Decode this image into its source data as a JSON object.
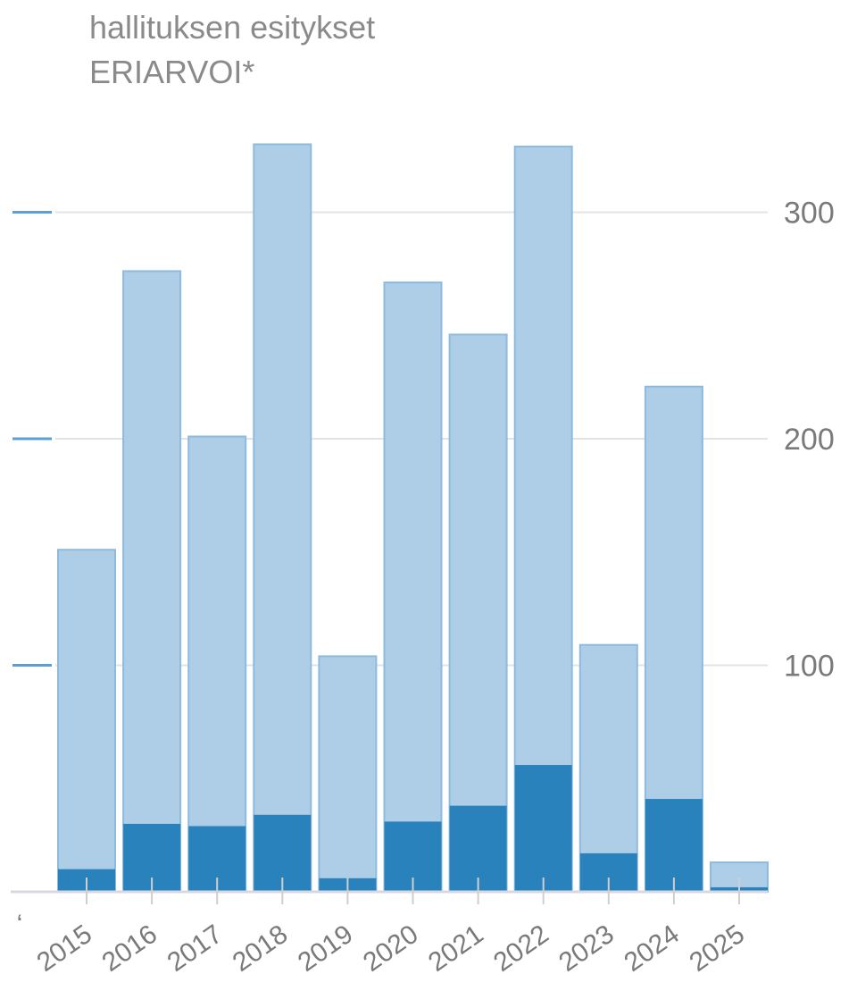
{
  "header": {
    "line1": "hallituksen esitykset",
    "line2": "ERIARVOI*"
  },
  "colors": {
    "total": "#aecde6",
    "total_stroke": "#8dbbe0",
    "part": "#2a82bd",
    "grid": "#e3e3e3",
    "axis_text": "#7a7a7a",
    "left_tick": "#5aa0d6"
  },
  "chart_data": {
    "type": "bar",
    "categories": [
      "2015",
      "2016",
      "2017",
      "2018",
      "2019",
      "2020",
      "2021",
      "2022",
      "2023",
      "2024",
      "2025"
    ],
    "series": [
      {
        "values": [
          151,
          274,
          201,
          330,
          104,
          269,
          246,
          329,
          109,
          223,
          13
        ]
      },
      {
        "values": [
          10,
          30,
          29,
          34,
          6,
          31,
          38,
          56,
          17,
          41,
          2
        ]
      }
    ],
    "y_ticks": [
      100,
      200,
      300
    ],
    "ylim": [
      0,
      340
    ],
    "y_axis_side": "right",
    "grid": true,
    "partial_left_label": "‘"
  }
}
